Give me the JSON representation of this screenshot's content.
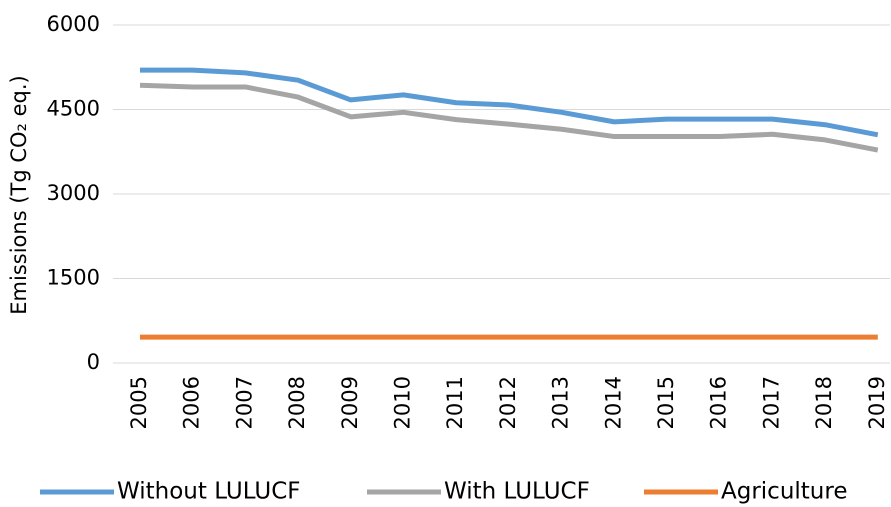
{
  "chart_data": {
    "type": "line",
    "y_label": "Emissions (Tg CO₂ eq.)",
    "categories": [
      "2005",
      "2006",
      "2007",
      "2008",
      "2009",
      "2010",
      "2011",
      "2012",
      "2013",
      "2014",
      "2015",
      "2016",
      "2017",
      "2018",
      "2019"
    ],
    "series": [
      {
        "name": "Without LULUCF",
        "color": "#5b9bd5",
        "values": [
          5200,
          5200,
          5150,
          5020,
          4670,
          4760,
          4620,
          4580,
          4450,
          4280,
          4330,
          4330,
          4330,
          4230,
          4050
        ]
      },
      {
        "name": "With LULUCF",
        "color": "#a5a5a5",
        "values": [
          4930,
          4900,
          4900,
          4720,
          4370,
          4450,
          4320,
          4240,
          4150,
          4020,
          4020,
          4020,
          4060,
          3960,
          3780
        ]
      },
      {
        "name": "Agriculture",
        "color": "#ed7d31",
        "values": [
          460,
          460,
          460,
          460,
          460,
          460,
          460,
          460,
          460,
          460,
          460,
          460,
          460,
          460,
          460
        ]
      }
    ],
    "ylim": [
      0,
      6000
    ],
    "yticks": [
      0,
      1500,
      3000,
      4500,
      6000
    ],
    "grid": true,
    "legend": "bottom"
  }
}
